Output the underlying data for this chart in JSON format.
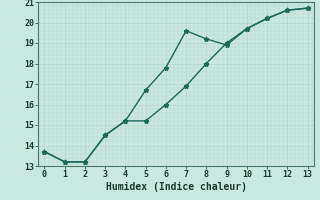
{
  "xlabel": "Humidex (Indice chaleur)",
  "background_color": "#c8e8e0",
  "grid_color": "#b8d8d0",
  "line_color": "#1a6b5a",
  "line1_x": [
    0,
    1,
    2,
    3,
    4,
    5,
    6,
    7,
    8,
    9,
    10,
    11,
    12,
    13
  ],
  "line1_y": [
    13.7,
    13.2,
    13.2,
    14.5,
    15.2,
    16.7,
    17.8,
    19.6,
    19.2,
    18.9,
    19.7,
    20.2,
    20.6,
    20.7
  ],
  "line2_x": [
    0,
    1,
    2,
    3,
    4,
    5,
    6,
    7,
    8,
    9,
    10,
    11,
    12,
    13
  ],
  "line2_y": [
    13.7,
    13.2,
    13.2,
    14.5,
    15.2,
    15.2,
    16.0,
    16.9,
    18.0,
    19.0,
    19.7,
    20.2,
    20.6,
    20.7
  ],
  "xlim": [
    -0.3,
    13.3
  ],
  "ylim": [
    13,
    21
  ],
  "yticks": [
    13,
    14,
    15,
    16,
    17,
    18,
    19,
    20,
    21
  ],
  "xticks": [
    0,
    1,
    2,
    3,
    4,
    5,
    6,
    7,
    8,
    9,
    10,
    11,
    12,
    13
  ],
  "marker": "*",
  "linewidth": 1.0,
  "markersize": 3.5
}
